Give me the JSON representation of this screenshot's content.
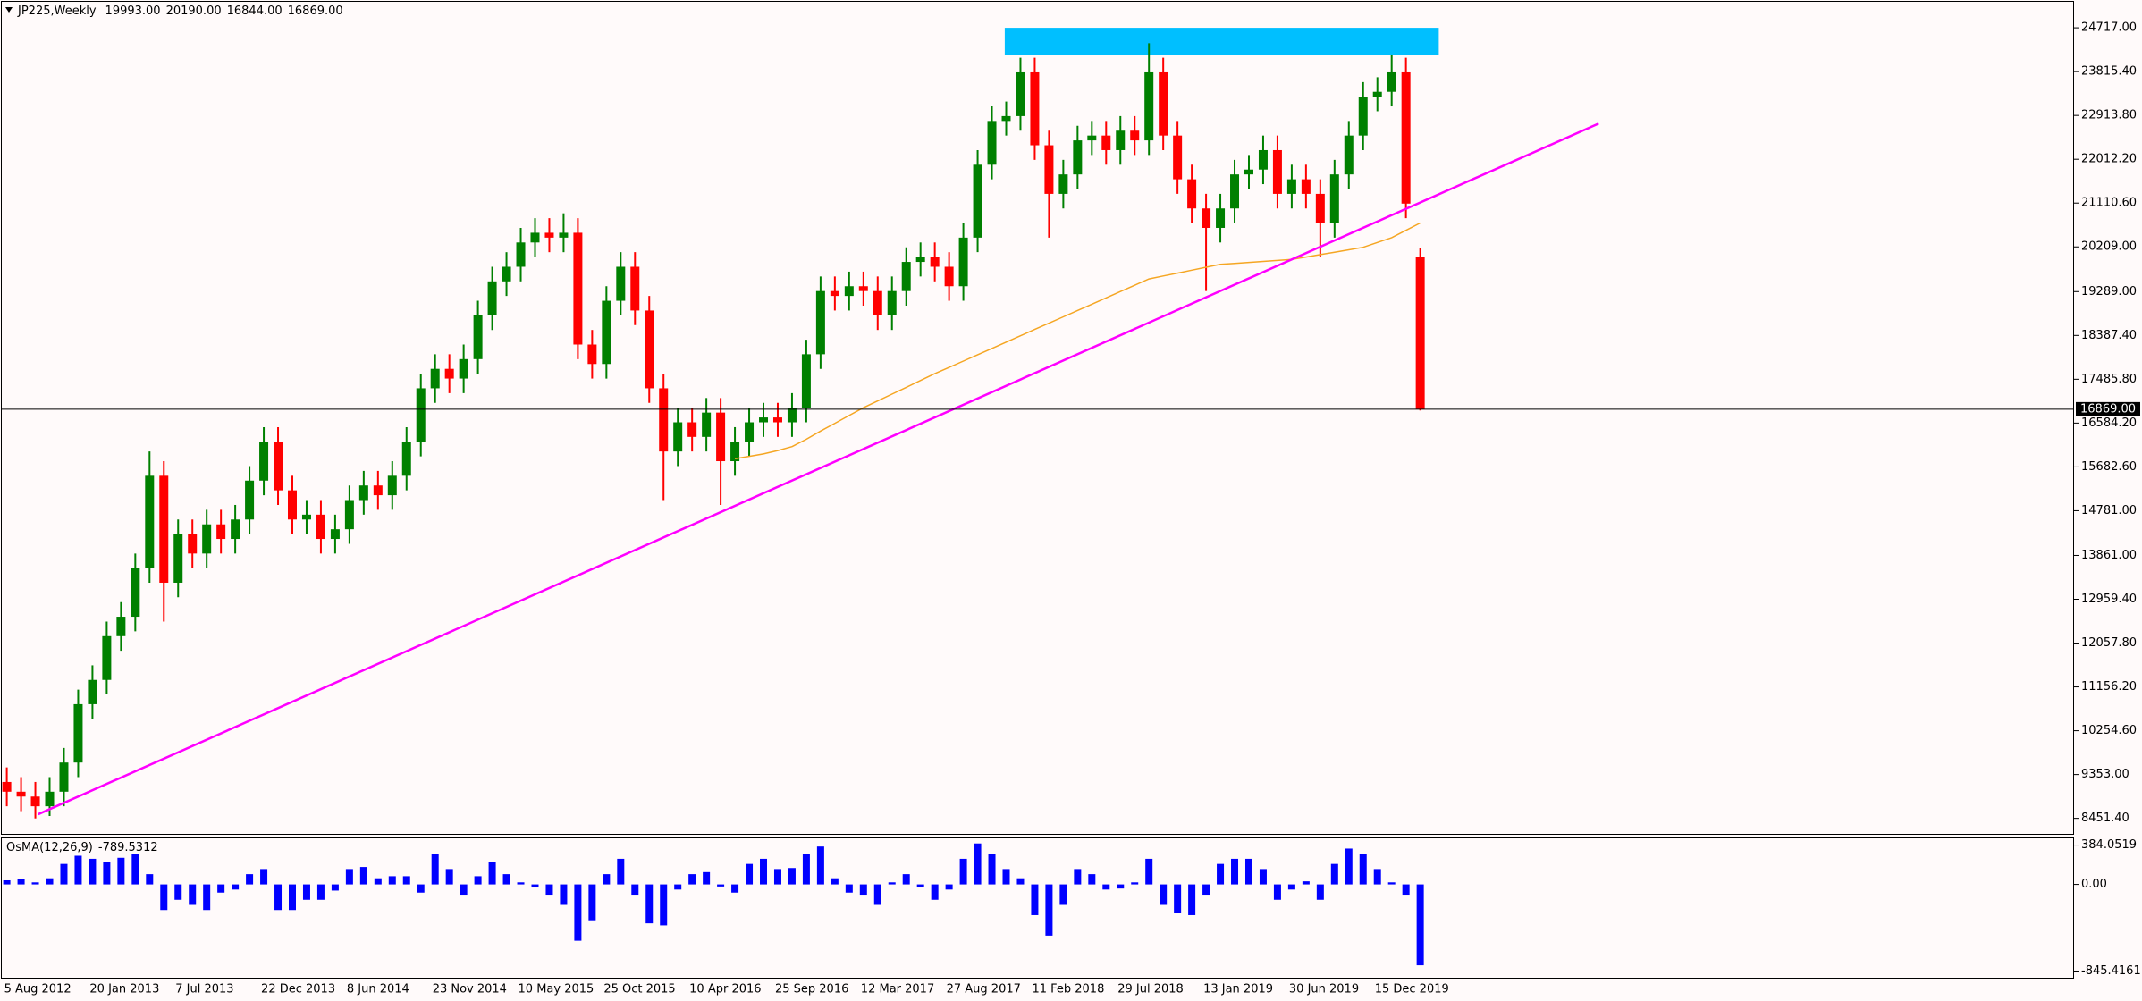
{
  "chart_data": {
    "type": "candlestick",
    "symbol": "JP225,Weekly",
    "last_bar_labels": [
      "19993.00",
      "20190.00",
      "16844.00",
      "16869.00"
    ],
    "categories": [
      "5 Aug 2012",
      null,
      null,
      null,
      null,
      null,
      "20 Jan 2013",
      null,
      null,
      null,
      null,
      null,
      "7 Jul 2013",
      null,
      null,
      null,
      null,
      null,
      "22 Dec 2013",
      null,
      null,
      null,
      null,
      null,
      "8 Jun 2014",
      null,
      null,
      null,
      null,
      null,
      "23 Nov 2014",
      null,
      null,
      null,
      null,
      null,
      "10 May 2015",
      null,
      null,
      null,
      null,
      null,
      "25 Oct 2015",
      null,
      null,
      null,
      null,
      null,
      "10 Apr 2016",
      null,
      null,
      null,
      null,
      null,
      "25 Sep 2016",
      null,
      null,
      null,
      null,
      null,
      "12 Mar 2017",
      null,
      null,
      null,
      null,
      null,
      "27 Aug 2017",
      null,
      null,
      null,
      null,
      null,
      "11 Feb 2018",
      null,
      null,
      null,
      null,
      null,
      "29 Jul 2018",
      null,
      null,
      null,
      null,
      null,
      "13 Jan 2019",
      null,
      null,
      null,
      null,
      null,
      "30 Jun 2019",
      null,
      null,
      null,
      null,
      null,
      "15 Dec 2019",
      null,
      null,
      null
    ],
    "open": [
      9200,
      9000,
      8900,
      8700,
      9000,
      9600,
      10800,
      11300,
      12200,
      12600,
      13600,
      15500,
      13300,
      14300,
      13900,
      14500,
      14200,
      14600,
      15400,
      16200,
      15200,
      14600,
      14700,
      14200,
      14400,
      15000,
      15300,
      15100,
      15500,
      16200,
      17300,
      17700,
      17500,
      17900,
      18800,
      19500,
      19800,
      20300,
      20500,
      20400,
      20500,
      18200,
      17800,
      19100,
      19800,
      18900,
      17300,
      16000,
      16600,
      16300,
      16800,
      15800,
      16200,
      16600,
      16700,
      16600,
      16900,
      18000,
      19300,
      19200,
      19400,
      19300,
      18800,
      19300,
      19900,
      20000,
      19800,
      19400,
      20400,
      21900,
      22800,
      22900,
      23800,
      22300,
      21300,
      21700,
      22400,
      22500,
      22200,
      22600,
      22400,
      23800,
      22500,
      21600,
      21000,
      20600,
      21000,
      21700,
      21800,
      22200,
      21300,
      21600,
      21300,
      20700,
      21700,
      22500,
      23300,
      23400,
      23800,
      19993
    ],
    "high": [
      9500,
      9300,
      9200,
      9300,
      9900,
      11100,
      11600,
      12500,
      12900,
      13900,
      16000,
      15800,
      14600,
      14600,
      14800,
      14800,
      14900,
      15700,
      16500,
      16500,
      15500,
      15000,
      15000,
      14700,
      15300,
      15600,
      15600,
      15800,
      16500,
      17600,
      18000,
      18000,
      18200,
      19100,
      19800,
      20100,
      20600,
      20800,
      20800,
      20900,
      20800,
      18500,
      19400,
      20100,
      20100,
      19200,
      17600,
      16900,
      16900,
      17100,
      17100,
      16500,
      16900,
      17000,
      17000,
      17200,
      18300,
      19600,
      19600,
      19700,
      19700,
      19600,
      19600,
      20200,
      20300,
      20300,
      20100,
      20700,
      22200,
      23100,
      23200,
      24100,
      24100,
      22600,
      22000,
      22700,
      22800,
      22800,
      22900,
      22900,
      24400,
      24100,
      22800,
      21900,
      21300,
      21300,
      22000,
      22100,
      22500,
      22500,
      21900,
      21900,
      21600,
      22000,
      22800,
      23600,
      23700,
      24150,
      24100,
      20190
    ],
    "low": [
      8700,
      8600,
      8450,
      8500,
      8700,
      9300,
      10500,
      11000,
      11900,
      12300,
      13300,
      12500,
      13000,
      13600,
      13600,
      13900,
      13900,
      14300,
      15100,
      14900,
      14300,
      14300,
      13900,
      13900,
      14100,
      14700,
      14800,
      14800,
      15200,
      15900,
      17000,
      17200,
      17200,
      17600,
      18500,
      19200,
      19500,
      20000,
      20100,
      20100,
      17900,
      17500,
      17500,
      18800,
      18600,
      17000,
      15000,
      15700,
      16000,
      16000,
      14900,
      15500,
      15900,
      16300,
      16300,
      16300,
      16600,
      17700,
      18900,
      18900,
      19000,
      18500,
      18500,
      19000,
      19600,
      19500,
      19100,
      19100,
      20100,
      21600,
      22500,
      22600,
      22000,
      20400,
      21000,
      21400,
      22100,
      21900,
      21900,
      22100,
      22100,
      22200,
      21300,
      20700,
      19300,
      20300,
      20700,
      21400,
      21500,
      21000,
      21000,
      21000,
      20000,
      20400,
      21400,
      22200,
      23000,
      23100,
      20800,
      16844
    ],
    "close": [
      9000,
      8900,
      8700,
      9000,
      9600,
      10800,
      11300,
      12200,
      12600,
      13600,
      15500,
      13300,
      14300,
      13900,
      14500,
      14200,
      14600,
      15400,
      16200,
      15200,
      14600,
      14700,
      14200,
      14400,
      15000,
      15300,
      15100,
      15500,
      16200,
      17300,
      17700,
      17500,
      17900,
      18800,
      19500,
      19800,
      20300,
      20500,
      20400,
      20500,
      18200,
      17800,
      19100,
      19800,
      18900,
      17300,
      16000,
      16600,
      16300,
      16800,
      15800,
      16200,
      16600,
      16700,
      16600,
      16900,
      18000,
      19300,
      19200,
      19400,
      19300,
      18800,
      19300,
      19900,
      20000,
      19800,
      19400,
      20400,
      21900,
      22800,
      22900,
      23800,
      22300,
      21300,
      21700,
      22400,
      22500,
      22200,
      22600,
      22400,
      23800,
      22500,
      21600,
      21000,
      20600,
      21000,
      21700,
      21800,
      22200,
      21300,
      21600,
      21300,
      20700,
      21700,
      22500,
      23300,
      23400,
      23800,
      21100,
      16869
    ],
    "up_color": "#008000",
    "down_color": "#ff0000",
    "ylim": [
      8114,
      25252
    ],
    "yticks": [
      {
        "value": 24717,
        "label": "24717.00"
      },
      {
        "value": 23815.4,
        "label": "23815.40"
      },
      {
        "value": 22913.8,
        "label": "22913.80"
      },
      {
        "value": 22012.2,
        "label": "22012.20"
      },
      {
        "value": 21110.6,
        "label": "21110.60"
      },
      {
        "value": 20209,
        "label": "20209.00"
      },
      {
        "value": 19289,
        "label": "19289.00"
      },
      {
        "value": 18387.4,
        "label": "18387.40"
      },
      {
        "value": 17485.8,
        "label": "17485.80"
      },
      {
        "value": 16584.2,
        "label": "16584.20"
      },
      {
        "value": 15682.6,
        "label": "15682.60"
      },
      {
        "value": 14781,
        "label": "14781.00"
      },
      {
        "value": 13861,
        "label": "13861.00"
      },
      {
        "value": 12959.4,
        "label": "12959.40"
      },
      {
        "value": 12057.8,
        "label": "12057.80"
      },
      {
        "value": 11156.2,
        "label": "11156.20"
      },
      {
        "value": 10254.6,
        "label": "10254.60"
      },
      {
        "value": 9353,
        "label": "9353.00"
      },
      {
        "value": 8451.4,
        "label": "8451.40"
      }
    ],
    "current_price": {
      "value": 16869,
      "label": "16869.00"
    },
    "moving_average": {
      "color": "#f5a623",
      "values": [
        null,
        null,
        null,
        null,
        null,
        null,
        null,
        null,
        null,
        null,
        null,
        null,
        null,
        null,
        null,
        null,
        null,
        null,
        null,
        null,
        null,
        null,
        null,
        null,
        null,
        null,
        null,
        null,
        null,
        null,
        null,
        null,
        null,
        null,
        null,
        null,
        null,
        null,
        null,
        null,
        null,
        null,
        null,
        null,
        null,
        null,
        null,
        null,
        null,
        null,
        null,
        15850,
        15900,
        15950,
        16020,
        16100,
        16250,
        16420,
        16580,
        16740,
        16900,
        17040,
        17180,
        17320,
        17460,
        17600,
        17730,
        17860,
        17990,
        18120,
        18250,
        18380,
        18510,
        18640,
        18770,
        18900,
        19030,
        19160,
        19290,
        19420,
        19550,
        19610,
        19670,
        19730,
        19790,
        19850,
        19870,
        19890,
        19910,
        19930,
        19950,
        20000,
        20050,
        20100,
        20150,
        20200,
        20300,
        20400,
        20550,
        20700
      ]
    },
    "trendline": {
      "color": "#ff00ff",
      "points": [
        [
          2.2,
          8536
        ],
        [
          111.5,
          22747
        ]
      ]
    },
    "zone": {
      "color": "#00bfff",
      "x": [
        69.9,
        100.3
      ],
      "y": [
        24154,
        24717
      ]
    },
    "oscillator": {
      "type": "histogram",
      "name": "OsMA(12,26,9)",
      "color": "#0000ff",
      "values": [
        40,
        50,
        20,
        60,
        200,
        280,
        250,
        220,
        260,
        300,
        100,
        -250,
        -150,
        -200,
        -250,
        -80,
        -50,
        100,
        150,
        -250,
        -250,
        -150,
        -150,
        -60,
        150,
        170,
        60,
        80,
        80,
        -80,
        300,
        150,
        -100,
        80,
        220,
        100,
        20,
        -30,
        -100,
        -200,
        -550,
        -350,
        100,
        250,
        -100,
        -380,
        -400,
        -50,
        100,
        120,
        -20,
        -80,
        200,
        250,
        150,
        160,
        300,
        370,
        60,
        -80,
        -100,
        -200,
        20,
        100,
        -30,
        -150,
        -50,
        250,
        400,
        300,
        150,
        60,
        -300,
        -500,
        -200,
        150,
        100,
        -50,
        -40,
        20,
        250,
        -200,
        -280,
        -300,
        -100,
        200,
        250,
        250,
        150,
        -150,
        -50,
        30,
        -150,
        200,
        350,
        300,
        150,
        20,
        -100,
        -789.5312
      ],
      "ylim": [
        -911,
        450
      ],
      "yticks": [
        384.0519,
        {
          "value": 0,
          "label": "0.00"
        },
        -845.4161
      ]
    }
  }
}
